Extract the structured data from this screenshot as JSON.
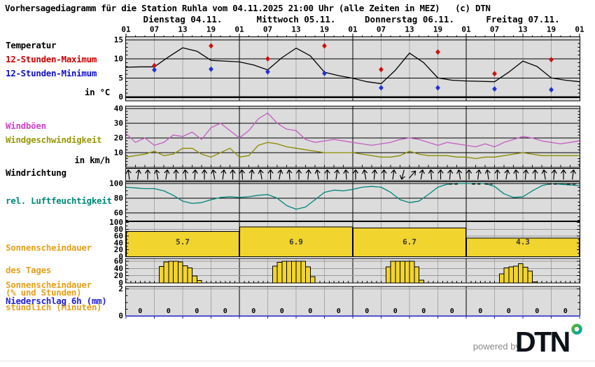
{
  "title": "Vorhersagediagramm für die Station Ruhla vom 04.11.2025 21:00 Uhr (alle Zeiten in MEZ)   (c) DTN",
  "branding": {
    "powered_by": "powered by",
    "logo_text": "DTN",
    "logo_color": "#0d1219",
    "dot_colors": [
      "#5cb531",
      "#00a2b2"
    ]
  },
  "left_labels": {
    "temperatur": {
      "text": "Temperatur",
      "color": "#000000"
    },
    "max12": {
      "text": "12-Stunden-Maximum",
      "color": "#cc0000"
    },
    "min12": {
      "text": "12-Stunden-Minimum",
      "color": "#1111cc"
    },
    "temp_unit": {
      "text": "in °C",
      "color": "#000000"
    },
    "windboeen": {
      "text": "Windböen",
      "color": "#cc44cc"
    },
    "windgeschw": {
      "text": "Windgeschwindigkeit",
      "color": "#99990a"
    },
    "wind_unit": {
      "text": "in km/h",
      "color": "#000000"
    },
    "windrichtung": {
      "text": "Windrichtung",
      "color": "#000000"
    },
    "humidity": {
      "text": "rel. Luftfeuchtigkeit",
      "color": "#00887a"
    },
    "sun_day": {
      "lines": [
        "Sonnenscheindauer",
        "des Tages",
        "(% und Stunden)"
      ],
      "color": "#e5a11c"
    },
    "sun_hour": {
      "lines": [
        "Sonnenscheindauer",
        "stündlich (Minuten)"
      ],
      "color": "#e5a11c"
    },
    "precip": {
      "text": "Niederschlag 6h (mm)",
      "color": "#2222dd"
    }
  },
  "axis": {
    "days": [
      {
        "label": "Dienstag 04.11."
      },
      {
        "label": "Mittwoch 05.11."
      },
      {
        "label": "Donnerstag 06.11."
      },
      {
        "label": "Freitag 07.11."
      }
    ],
    "hours": [
      "01",
      "07",
      "13",
      "19"
    ],
    "end_hour": "01"
  },
  "colors": {
    "panel_bg": "#dcdcdc",
    "vgrid": "#a8a8a8",
    "hgrid_dark": "#000000",
    "hgrid_light": "#9a9a9a",
    "temp_line": "#000000",
    "temp_max": "#cc1111",
    "temp_min": "#2233cc",
    "gusts": "#c45ec4",
    "windspeed": "#8b8b00",
    "humidity": "#00857a",
    "sun_bar": "#f1d42e",
    "precip_axis": "#2222cc"
  },
  "chart_data": [
    {
      "id": "temperature",
      "type": "line",
      "ylabel": "in °C",
      "yticks": [
        15,
        10,
        5,
        0
      ],
      "ylim": [
        -1,
        15.7
      ],
      "step_hours": 3,
      "series": [
        {
          "name": "Temperatur",
          "color": "#000000",
          "values": [
            7.8,
            7.9,
            7.9,
            10.5,
            12.9,
            12.0,
            9.6,
            9.4,
            9.2,
            8.4,
            7.1,
            10.3,
            12.8,
            10.8,
            6.5,
            5.6,
            4.9,
            4.0,
            3.5,
            7.0,
            11.5,
            9.0,
            5.0,
            4.4,
            4.2,
            4.1,
            4.0,
            6.5,
            9.4,
            8.0,
            5.0,
            4.4,
            4.0
          ]
        }
      ],
      "markers": [
        {
          "name": "12-Stunden-Maximum",
          "color": "#cc1111",
          "points": [
            {
              "t": 7,
              "v": 8.2
            },
            {
              "t": 19,
              "v": 13.4
            },
            {
              "t": 31,
              "v": 10.0
            },
            {
              "t": 43,
              "v": 13.4
            },
            {
              "t": 55,
              "v": 7.2
            },
            {
              "t": 67,
              "v": 11.8
            },
            {
              "t": 79,
              "v": 6.1
            },
            {
              "t": 91,
              "v": 9.8
            }
          ]
        },
        {
          "name": "12-Stunden-Minimum",
          "color": "#2233cc",
          "points": [
            {
              "t": 7,
              "v": 7.1
            },
            {
              "t": 19,
              "v": 7.3
            },
            {
              "t": 31,
              "v": 6.6
            },
            {
              "t": 43,
              "v": 6.2
            },
            {
              "t": 55,
              "v": 2.4
            },
            {
              "t": 67,
              "v": 2.4
            },
            {
              "t": 79,
              "v": 2.1
            },
            {
              "t": 91,
              "v": 1.9
            }
          ]
        }
      ]
    },
    {
      "id": "wind",
      "type": "line",
      "ylabel": "in km/h",
      "yticks": [
        40,
        30,
        20,
        10
      ],
      "ylim": [
        0,
        41.5
      ],
      "step_hours": 2,
      "series": [
        {
          "name": "Windböen",
          "color": "#c45ec4",
          "values": [
            23,
            17,
            20,
            15,
            17,
            22,
            21,
            24,
            19,
            27,
            30,
            25,
            20,
            25,
            33,
            37,
            30,
            26,
            25,
            19,
            17,
            18,
            19,
            18,
            17,
            16,
            15,
            16,
            17,
            19,
            20,
            19,
            17,
            15,
            17,
            16,
            15,
            14,
            16,
            14,
            17,
            19,
            21,
            20,
            18,
            17,
            16,
            17,
            18
          ]
        },
        {
          "name": "Windgeschwindigkeit",
          "color": "#8b8b00",
          "values": [
            7,
            8,
            9,
            11,
            8,
            9,
            13,
            13,
            9,
            7,
            10,
            13,
            7,
            8,
            15,
            17,
            16,
            14,
            13,
            12,
            11,
            10,
            10,
            10,
            10,
            9,
            8,
            7,
            7,
            8,
            11,
            9,
            8,
            8,
            8,
            7,
            7,
            6,
            7,
            7,
            8,
            9,
            10,
            9,
            8,
            8,
            8,
            8,
            8
          ]
        }
      ]
    },
    {
      "id": "winddir",
      "type": "arrows",
      "name": "Windrichtung",
      "directions_deg": [
        352,
        8,
        0,
        350,
        10,
        0,
        355,
        5,
        0,
        350,
        8,
        0,
        355,
        5,
        350,
        0,
        10,
        355,
        0,
        5,
        350,
        0,
        8,
        355,
        0,
        350,
        5,
        0,
        8,
        195,
        42,
        10,
        355,
        0,
        5,
        350,
        0,
        8,
        352,
        0,
        10,
        355,
        5,
        0,
        350,
        5,
        0,
        8
      ]
    },
    {
      "id": "humidity",
      "type": "line",
      "ylabel": "%",
      "yticks": [
        100,
        80,
        60
      ],
      "ylim": [
        48,
        102
      ],
      "step_hours": 2,
      "series": [
        {
          "name": "rel. Luftfeuchtigkeit",
          "color": "#00857a",
          "values": [
            95,
            94,
            93,
            93,
            90,
            84,
            76,
            73,
            74,
            78,
            81,
            82,
            81,
            82,
            84,
            85,
            80,
            70,
            65,
            68,
            78,
            88,
            91,
            90,
            92,
            95,
            96,
            95,
            88,
            78,
            74,
            76,
            85,
            95,
            99,
            100,
            100,
            100,
            100,
            96,
            86,
            81,
            82,
            90,
            97,
            100,
            99,
            98,
            97
          ]
        }
      ],
      "dash_ranges_t": [
        [
          69.3,
          71.5
        ],
        [
          74.2,
          76.0
        ],
        [
          76.9,
          78.6
        ],
        [
          90.3,
          92.3
        ],
        [
          94.3,
          96.2
        ]
      ]
    },
    {
      "id": "sunshine_day",
      "type": "bar",
      "yticks": [
        100,
        80,
        60,
        40,
        20,
        0
      ],
      "values_pct": [
        73,
        87,
        84,
        54
      ],
      "labels": [
        "5.7",
        "6.9",
        "6.7",
        "4.3"
      ]
    },
    {
      "id": "sunshine_hourly",
      "type": "bar",
      "yticks": [
        60,
        40,
        20,
        0
      ],
      "days": [
        {
          "start_hour": 8,
          "minutes": [
            46,
            58,
            60,
            60,
            58,
            48,
            42,
            19,
            7
          ]
        },
        {
          "start_hour": 8,
          "minutes": [
            47,
            57,
            60,
            60,
            60,
            60,
            60,
            45,
            17
          ]
        },
        {
          "start_hour": 8,
          "minutes": [
            45,
            60,
            60,
            60,
            60,
            60,
            45,
            8
          ]
        },
        {
          "start_hour": 8,
          "minutes": [
            25,
            42,
            45,
            47,
            53,
            44,
            33,
            3
          ]
        }
      ]
    },
    {
      "id": "precip",
      "type": "cells",
      "yticks": [
        2,
        0
      ],
      "values": [
        "0",
        "0",
        "0",
        "0",
        "0",
        "0",
        "0",
        "0",
        "0",
        "0",
        "0",
        "0",
        "0",
        "0",
        "0",
        "0"
      ]
    }
  ]
}
